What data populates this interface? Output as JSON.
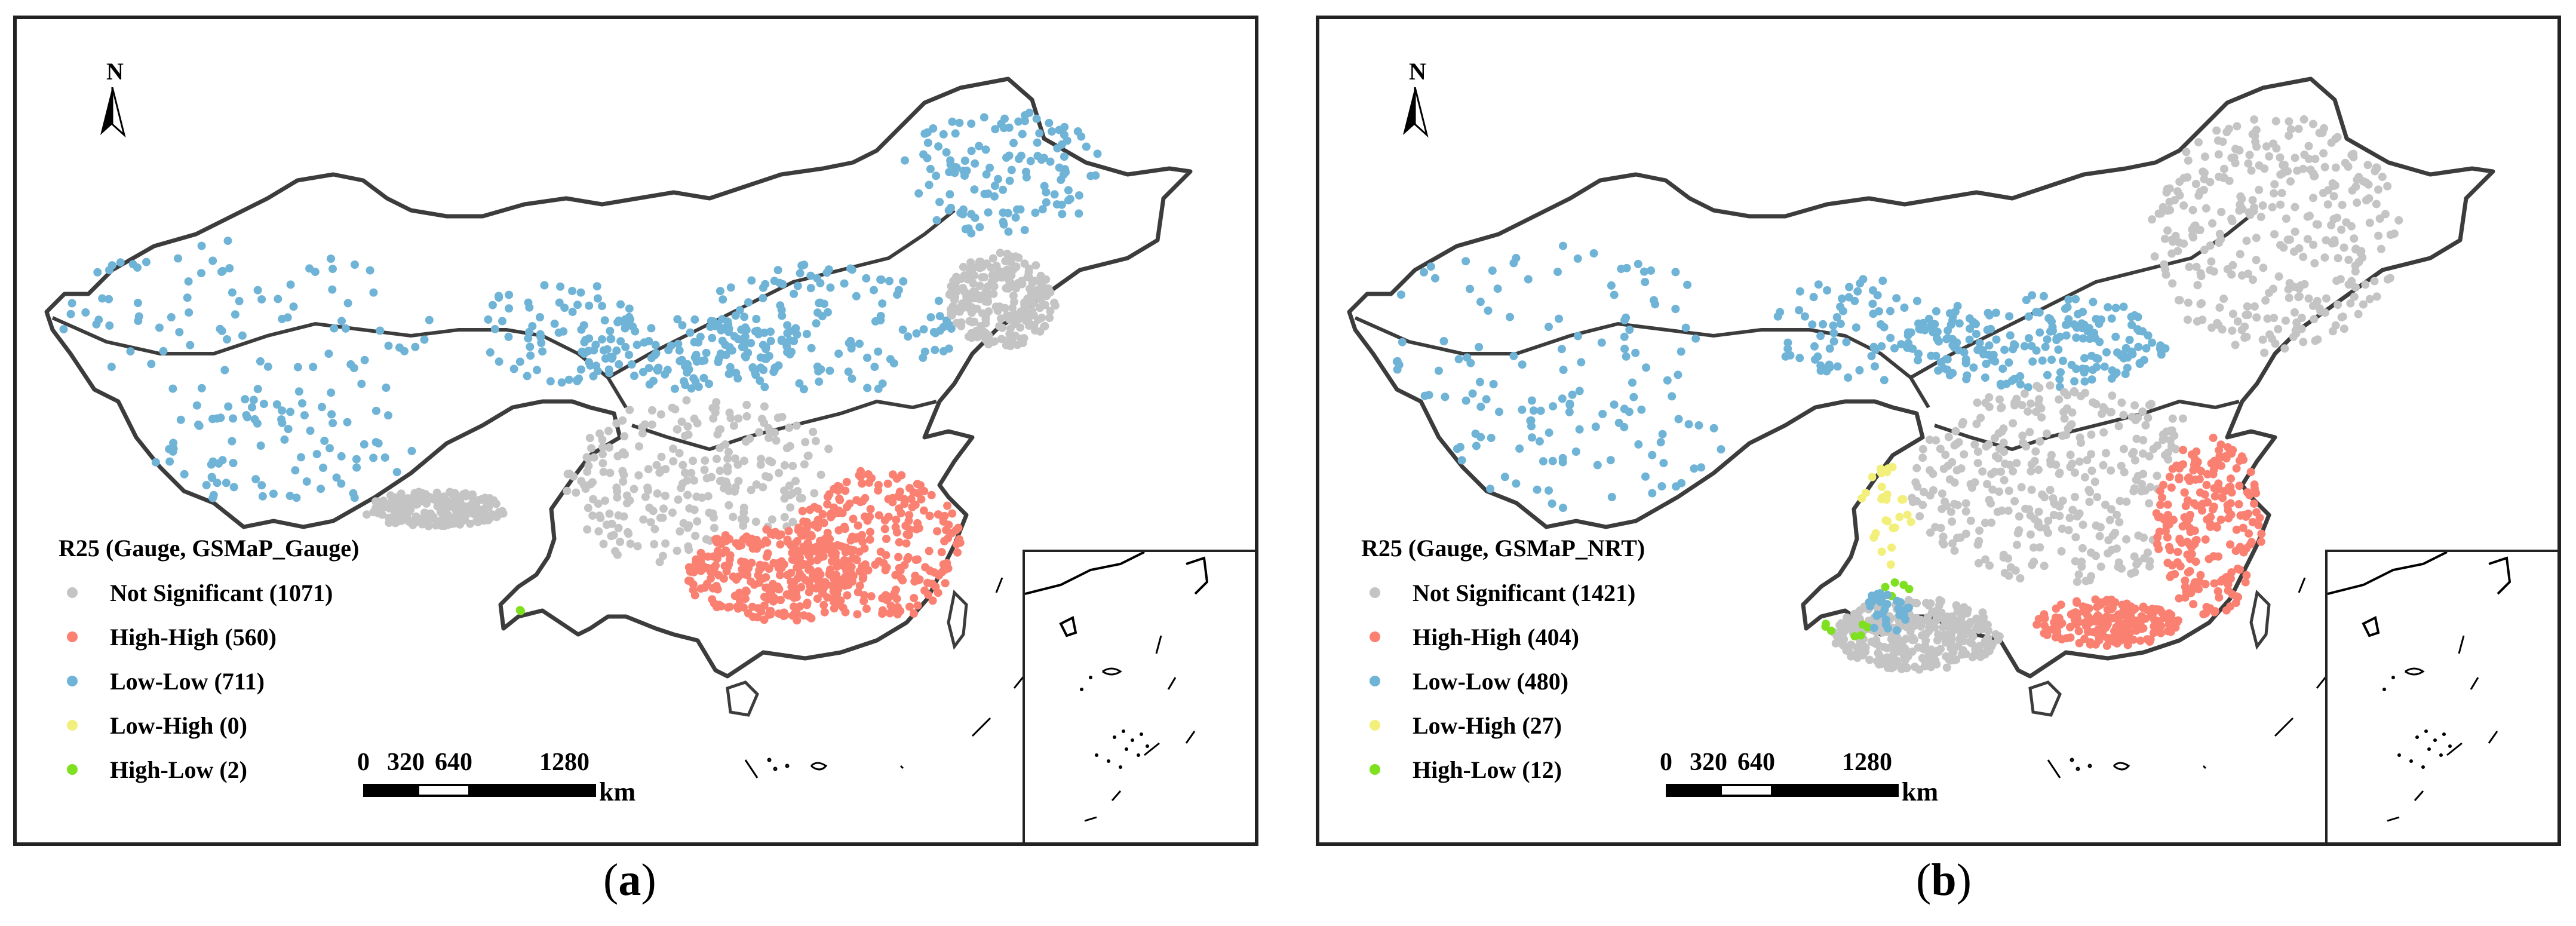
{
  "colors": {
    "not_significant": "#c4c4c4",
    "high_high": "#fa8072",
    "low_low": "#6fb3d6",
    "low_high": "#f2ef7a",
    "high_low": "#7fe01f",
    "boundary": "#3c3c3c"
  },
  "north_label": "N",
  "scale": {
    "labels": [
      "0",
      "320",
      "640",
      "1280"
    ],
    "unit": "km"
  },
  "panels": [
    {
      "id": "a",
      "caption_open": "(",
      "caption_letter": "a",
      "caption_close": ")",
      "legend": {
        "title": "R25 (Gauge, GSMaP_Gauge)",
        "items": [
          {
            "label": "Not Significant",
            "count": "(1071)",
            "category": "not_significant"
          },
          {
            "label": "High-High",
            "count": "(560)",
            "category": "high_high"
          },
          {
            "label": "Low-Low",
            "count": "(711)",
            "category": "low_low"
          },
          {
            "label": "Low-High",
            "count": "(0)",
            "category": "low_high"
          },
          {
            "label": "High-Low",
            "count": "(2)",
            "category": "high_low"
          }
        ]
      }
    },
    {
      "id": "b",
      "caption_open": "(",
      "caption_letter": "b",
      "caption_close": ")",
      "legend": {
        "title": "R25 (Gauge, GSMaP_NRT)",
        "items": [
          {
            "label": "Not Significant",
            "count": "(1421)",
            "category": "not_significant"
          },
          {
            "label": "High-High",
            "count": "(404)",
            "category": "high_high"
          },
          {
            "label": "Low-Low",
            "count": "(480)",
            "category": "low_low"
          },
          {
            "label": "Low-High",
            "count": "(27)",
            "category": "low_high"
          },
          {
            "label": "High-Low",
            "count": "(12)",
            "category": "high_low"
          }
        ]
      }
    }
  ]
}
